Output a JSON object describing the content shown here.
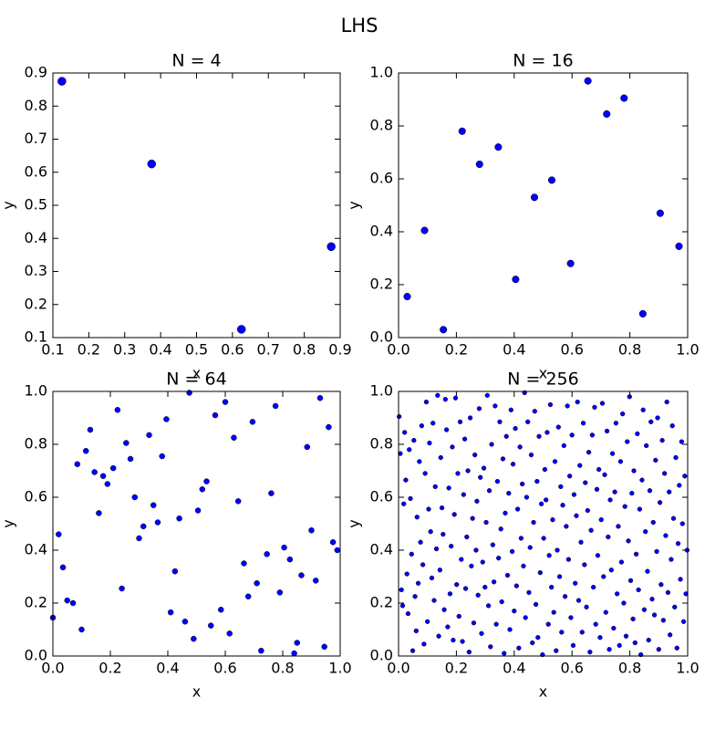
{
  "title": "LHS",
  "chart_data": [
    {
      "type": "scatter",
      "title": "N = 4",
      "xlabel": "x",
      "ylabel": "y",
      "color": "#0000ff",
      "x": [
        0.125,
        0.375,
        0.625,
        0.875
      ],
      "y": [
        0.875,
        0.625,
        0.125,
        0.375
      ],
      "xlim": [
        0.1,
        0.9
      ],
      "ylim": [
        0.1,
        0.9
      ],
      "xticks": [
        0.1,
        0.2,
        0.3,
        0.4,
        0.5,
        0.6,
        0.7,
        0.8,
        0.9
      ],
      "yticks": [
        0.1,
        0.2,
        0.3,
        0.4,
        0.5,
        0.6,
        0.7,
        0.8,
        0.9
      ]
    },
    {
      "type": "scatter",
      "title": "N = 16",
      "xlabel": "x",
      "ylabel": "y",
      "color": "#0000ff",
      "x": [
        0.03,
        0.09,
        0.155,
        0.22,
        0.28,
        0.345,
        0.405,
        0.47,
        0.53,
        0.595,
        0.655,
        0.72,
        0.78,
        0.845,
        0.905,
        0.97
      ],
      "y": [
        0.155,
        0.405,
        0.03,
        0.78,
        0.655,
        0.72,
        0.22,
        0.53,
        0.595,
        0.28,
        0.97,
        0.845,
        0.905,
        0.09,
        0.47,
        0.345
      ],
      "xlim": [
        0,
        1
      ],
      "ylim": [
        0,
        1
      ],
      "xticks": [
        {
          "value": 0,
          "label": "0.0"
        },
        0.2,
        0.4,
        0.6,
        0.8,
        {
          "value": 1,
          "label": "1.0"
        }
      ],
      "yticks": [
        {
          "value": 0,
          "label": "0.0"
        },
        0.2,
        0.4,
        0.6,
        0.8,
        {
          "value": 1,
          "label": "1.0"
        }
      ]
    },
    {
      "type": "scatter",
      "title": "N = 64",
      "xlabel": "x",
      "ylabel": "y",
      "color": "#0000ff",
      "x": [
        0,
        0.02,
        0.035,
        0.05,
        0.07,
        0.085,
        0.1,
        0.115,
        0.13,
        0.145,
        0.16,
        0.175,
        0.19,
        0.21,
        0.225,
        0.24,
        0.255,
        0.27,
        0.285,
        0.3,
        0.315,
        0.335,
        0.35,
        0.365,
        0.38,
        0.395,
        0.41,
        0.425,
        0.44,
        0.46,
        0.475,
        0.49,
        0.505,
        0.52,
        0.535,
        0.55,
        0.565,
        0.585,
        0.6,
        0.615,
        0.63,
        0.645,
        0.665,
        0.68,
        0.695,
        0.71,
        0.725,
        0.745,
        0.76,
        0.775,
        0.79,
        0.805,
        0.825,
        0.84,
        0.85,
        0.865,
        0.885,
        0.9,
        0.915,
        0.93,
        0.945,
        0.96,
        0.975,
        0.99
      ],
      "y": [
        0.145,
        0.46,
        0.335,
        0.21,
        0.2,
        0.725,
        0.1,
        0.775,
        0.855,
        0.695,
        0.54,
        0.68,
        0.65,
        0.71,
        0.93,
        0.255,
        0.805,
        0.745,
        0.6,
        0.445,
        0.49,
        0.835,
        0.57,
        0.505,
        0.755,
        0.895,
        0.165,
        0.32,
        0.52,
        0.13,
        0.995,
        0.065,
        0.55,
        0.63,
        0.66,
        0.115,
        0.91,
        0.175,
        0.96,
        0.085,
        0.825,
        0.585,
        0.35,
        0.225,
        0.885,
        0.275,
        0.02,
        0.385,
        0.615,
        0.945,
        0.24,
        0.41,
        0.365,
        0.01,
        0.05,
        0.305,
        0.79,
        0.475,
        0.285,
        0.975,
        0.035,
        0.865,
        0.43,
        0.4
      ],
      "xlim": [
        0,
        1
      ],
      "ylim": [
        0,
        1
      ],
      "xticks": [
        {
          "value": 0,
          "label": "0.0"
        },
        0.2,
        0.4,
        0.6,
        0.8,
        {
          "value": 1,
          "label": "1.0"
        }
      ],
      "yticks": [
        {
          "value": 0,
          "label": "0.0"
        },
        0.2,
        0.4,
        0.6,
        0.8,
        {
          "value": 1,
          "label": "1.0"
        }
      ]
    },
    {
      "type": "scatter",
      "title": "N = 256",
      "xlabel": "x",
      "ylabel": "y",
      "color": "#0000ff",
      "x": [
        0.002,
        0.006,
        0.01,
        0.014,
        0.018,
        0.021,
        0.025,
        0.029,
        0.033,
        0.037,
        0.041,
        0.045,
        0.049,
        0.053,
        0.057,
        0.061,
        0.064,
        0.068,
        0.072,
        0.076,
        0.08,
        0.084,
        0.088,
        0.092,
        0.096,
        0.1,
        0.104,
        0.107,
        0.111,
        0.115,
        0.119,
        0.123,
        0.127,
        0.131,
        0.135,
        0.139,
        0.143,
        0.146,
        0.15,
        0.154,
        0.158,
        0.162,
        0.166,
        0.17,
        0.174,
        0.178,
        0.182,
        0.186,
        0.189,
        0.193,
        0.197,
        0.201,
        0.205,
        0.209,
        0.213,
        0.217,
        0.221,
        0.225,
        0.229,
        0.232,
        0.236,
        0.24,
        0.244,
        0.248,
        0.252,
        0.256,
        0.26,
        0.264,
        0.268,
        0.271,
        0.275,
        0.279,
        0.283,
        0.287,
        0.291,
        0.295,
        0.299,
        0.303,
        0.307,
        0.311,
        0.314,
        0.318,
        0.322,
        0.326,
        0.33,
        0.334,
        0.338,
        0.342,
        0.346,
        0.35,
        0.354,
        0.357,
        0.361,
        0.365,
        0.369,
        0.373,
        0.377,
        0.381,
        0.385,
        0.389,
        0.393,
        0.396,
        0.4,
        0.404,
        0.408,
        0.412,
        0.416,
        0.42,
        0.424,
        0.428,
        0.432,
        0.436,
        0.439,
        0.443,
        0.447,
        0.451,
        0.455,
        0.459,
        0.463,
        0.467,
        0.471,
        0.475,
        0.479,
        0.482,
        0.486,
        0.49,
        0.494,
        0.498,
        0.502,
        0.506,
        0.51,
        0.514,
        0.518,
        0.521,
        0.525,
        0.529,
        0.533,
        0.537,
        0.541,
        0.545,
        0.549,
        0.553,
        0.557,
        0.561,
        0.564,
        0.568,
        0.572,
        0.576,
        0.58,
        0.584,
        0.588,
        0.592,
        0.596,
        0.6,
        0.604,
        0.607,
        0.611,
        0.615,
        0.619,
        0.623,
        0.627,
        0.631,
        0.635,
        0.639,
        0.643,
        0.646,
        0.65,
        0.654,
        0.658,
        0.662,
        0.666,
        0.67,
        0.674,
        0.678,
        0.682,
        0.686,
        0.689,
        0.693,
        0.697,
        0.701,
        0.705,
        0.709,
        0.713,
        0.717,
        0.721,
        0.725,
        0.729,
        0.732,
        0.736,
        0.74,
        0.744,
        0.748,
        0.752,
        0.756,
        0.76,
        0.764,
        0.768,
        0.771,
        0.775,
        0.779,
        0.783,
        0.787,
        0.791,
        0.795,
        0.799,
        0.803,
        0.807,
        0.811,
        0.814,
        0.818,
        0.822,
        0.826,
        0.83,
        0.834,
        0.838,
        0.842,
        0.846,
        0.85,
        0.854,
        0.857,
        0.861,
        0.865,
        0.869,
        0.873,
        0.877,
        0.881,
        0.885,
        0.889,
        0.893,
        0.896,
        0.9,
        0.904,
        0.908,
        0.912,
        0.916,
        0.92,
        0.924,
        0.928,
        0.932,
        0.936,
        0.939,
        0.943,
        0.947,
        0.951,
        0.955,
        0.959,
        0.963,
        0.967,
        0.971,
        0.975,
        0.979,
        0.982,
        0.986,
        0.99,
        0.994,
        0.998
      ],
      "y": [
        0.905,
        0.765,
        0.25,
        0.19,
        0.575,
        0.845,
        0.665,
        0.31,
        0.16,
        0.78,
        0.595,
        0.385,
        0.02,
        0.815,
        0.225,
        0.095,
        0.525,
        0.275,
        0.735,
        0.43,
        0.87,
        0.345,
        0.045,
        0.69,
        0.96,
        0.13,
        0.555,
        0.805,
        0.47,
        0.295,
        0.88,
        0.21,
        0.64,
        0.405,
        0.985,
        0.075,
        0.325,
        0.75,
        0.56,
        0.46,
        0.175,
        0.97,
        0.855,
        0.11,
        0.635,
        0.235,
        0.415,
        0.79,
        0.06,
        0.535,
        0.975,
        0.27,
        0.69,
        0.15,
        0.885,
        0.365,
        0.055,
        0.61,
        0.82,
        0.255,
        0.45,
        0.7,
        0.015,
        0.9,
        0.34,
        0.52,
        0.125,
        0.76,
        0.4,
        0.585,
        0.23,
        0.935,
        0.675,
        0.085,
        0.355,
        0.71,
        0.26,
        0.505,
        0.985,
        0.19,
        0.625,
        0.035,
        0.8,
        0.42,
        0.28,
        0.945,
        0.12,
        0.66,
        0.37,
        0.885,
        0.48,
        0.205,
        0.745,
        0.01,
        0.54,
        0.83,
        0.305,
        0.615,
        0.1,
        0.93,
        0.395,
        0.725,
        0.17,
        0.86,
        0.265,
        0.555,
        0.03,
        0.79,
        0.445,
        0.65,
        0.34,
        0.995,
        0.145,
        0.6,
        0.885,
        0.24,
        0.41,
        0.76,
        0.05,
        0.505,
        0.925,
        0.195,
        0.66,
        0.07,
        0.83,
        0.315,
        0.575,
        0.005,
        0.445,
        0.705,
        0.59,
        0.845,
        0.12,
        0.38,
        0.95,
        0.26,
        0.515,
        0.165,
        0.735,
        0.02,
        0.4,
        0.865,
        0.3,
        0.64,
        0.09,
        0.57,
        0.795,
        0.225,
        0.49,
        0.945,
        0.365,
        0.68,
        0.145,
        0.835,
        0.04,
        0.61,
        0.275,
        0.53,
        0.96,
        0.21,
        0.72,
        0.43,
        0.09,
        0.88,
        0.345,
        0.655,
        0.185,
        0.55,
        0.77,
        0.015,
        0.475,
        0.835,
        0.26,
        0.94,
        0.12,
        0.63,
        0.38,
        0.705,
        0.07,
        0.515,
        0.955,
        0.3,
        0.685,
        0.165,
        0.85,
        0.45,
        0.025,
        0.59,
        0.325,
        0.765,
        0.105,
        0.62,
        0.88,
        0.235,
        0.49,
        0.04,
        0.735,
        0.355,
        0.915,
        0.2,
        0.565,
        0.075,
        0.81,
        0.435,
        0.98,
        0.285,
        0.615,
        0.14,
        0.7,
        0.05,
        0.385,
        0.84,
        0.25,
        0.555,
        0.005,
        0.665,
        0.93,
        0.175,
        0.47,
        0.795,
        0.32,
        0.06,
        0.625,
        0.885,
        0.215,
        0.505,
        0.155,
        0.74,
        0.395,
        0.9,
        0.025,
        0.58,
        0.27,
        0.815,
        0.135,
        0.69,
        0.455,
        0.96,
        0.24,
        0.62,
        0.08,
        0.365,
        0.87,
        0.52,
        0.185,
        0.75,
        0.03,
        0.425,
        0.645,
        0.29,
        0.81,
        0.5,
        0.13,
        0.68,
        0.235,
        0.4
      ],
      "xlim": [
        0,
        1
      ],
      "ylim": [
        0,
        1
      ],
      "xticks": [
        {
          "value": 0,
          "label": "0.0"
        },
        0.2,
        0.4,
        0.6,
        0.8,
        {
          "value": 1,
          "label": "1.0"
        }
      ],
      "yticks": [
        {
          "value": 0,
          "label": "0.0"
        },
        0.2,
        0.4,
        0.6,
        0.8,
        {
          "value": 1,
          "label": "1.0"
        }
      ]
    }
  ]
}
